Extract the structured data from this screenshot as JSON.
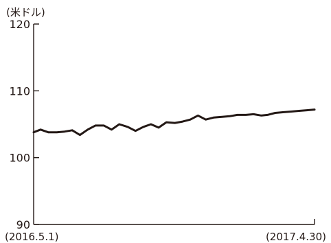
{
  "chart_data": {
    "type": "line",
    "unit_label": "(米ドル)",
    "title": "",
    "xlabel": "",
    "ylabel": "",
    "ylim": [
      90,
      120
    ],
    "yticks": [
      90,
      100,
      110,
      120
    ],
    "ytick_labels": [
      "90",
      "100",
      "110",
      "120"
    ],
    "xlim": [
      "2016-05-01",
      "2017-04-30"
    ],
    "xtick_labels": [
      "(2016.5.1)",
      "(2017.4.30)"
    ],
    "grid": false,
    "legend": "none",
    "line_color": "#231815",
    "series": [
      {
        "x": [
          "2016-05-01",
          "2016-05-10",
          "2016-05-20",
          "2016-05-31",
          "2016-06-10",
          "2016-06-20",
          "2016-06-30",
          "2016-07-10",
          "2016-07-20",
          "2016-07-31",
          "2016-08-10",
          "2016-08-20",
          "2016-08-31",
          "2016-09-10",
          "2016-09-20",
          "2016-09-30",
          "2016-10-10",
          "2016-10-20",
          "2016-10-31",
          "2016-11-10",
          "2016-11-20",
          "2016-11-30",
          "2016-12-10",
          "2016-12-20",
          "2016-12-31",
          "2017-01-10",
          "2017-01-20",
          "2017-01-31",
          "2017-02-10",
          "2017-02-20",
          "2017-02-28",
          "2017-03-10",
          "2017-03-20",
          "2017-03-31",
          "2017-04-10",
          "2017-04-20",
          "2017-04-30"
        ],
        "values": [
          103.8,
          104.2,
          103.8,
          103.8,
          103.9,
          104.1,
          103.4,
          104.2,
          104.8,
          104.8,
          104.2,
          105.0,
          104.6,
          104.0,
          104.6,
          105.0,
          104.5,
          105.3,
          105.2,
          105.4,
          105.7,
          106.3,
          105.7,
          106.0,
          106.1,
          106.2,
          106.4,
          106.4,
          106.5,
          106.3,
          106.4,
          106.7,
          106.8,
          106.9,
          107.0,
          107.1,
          107.2
        ]
      }
    ]
  }
}
